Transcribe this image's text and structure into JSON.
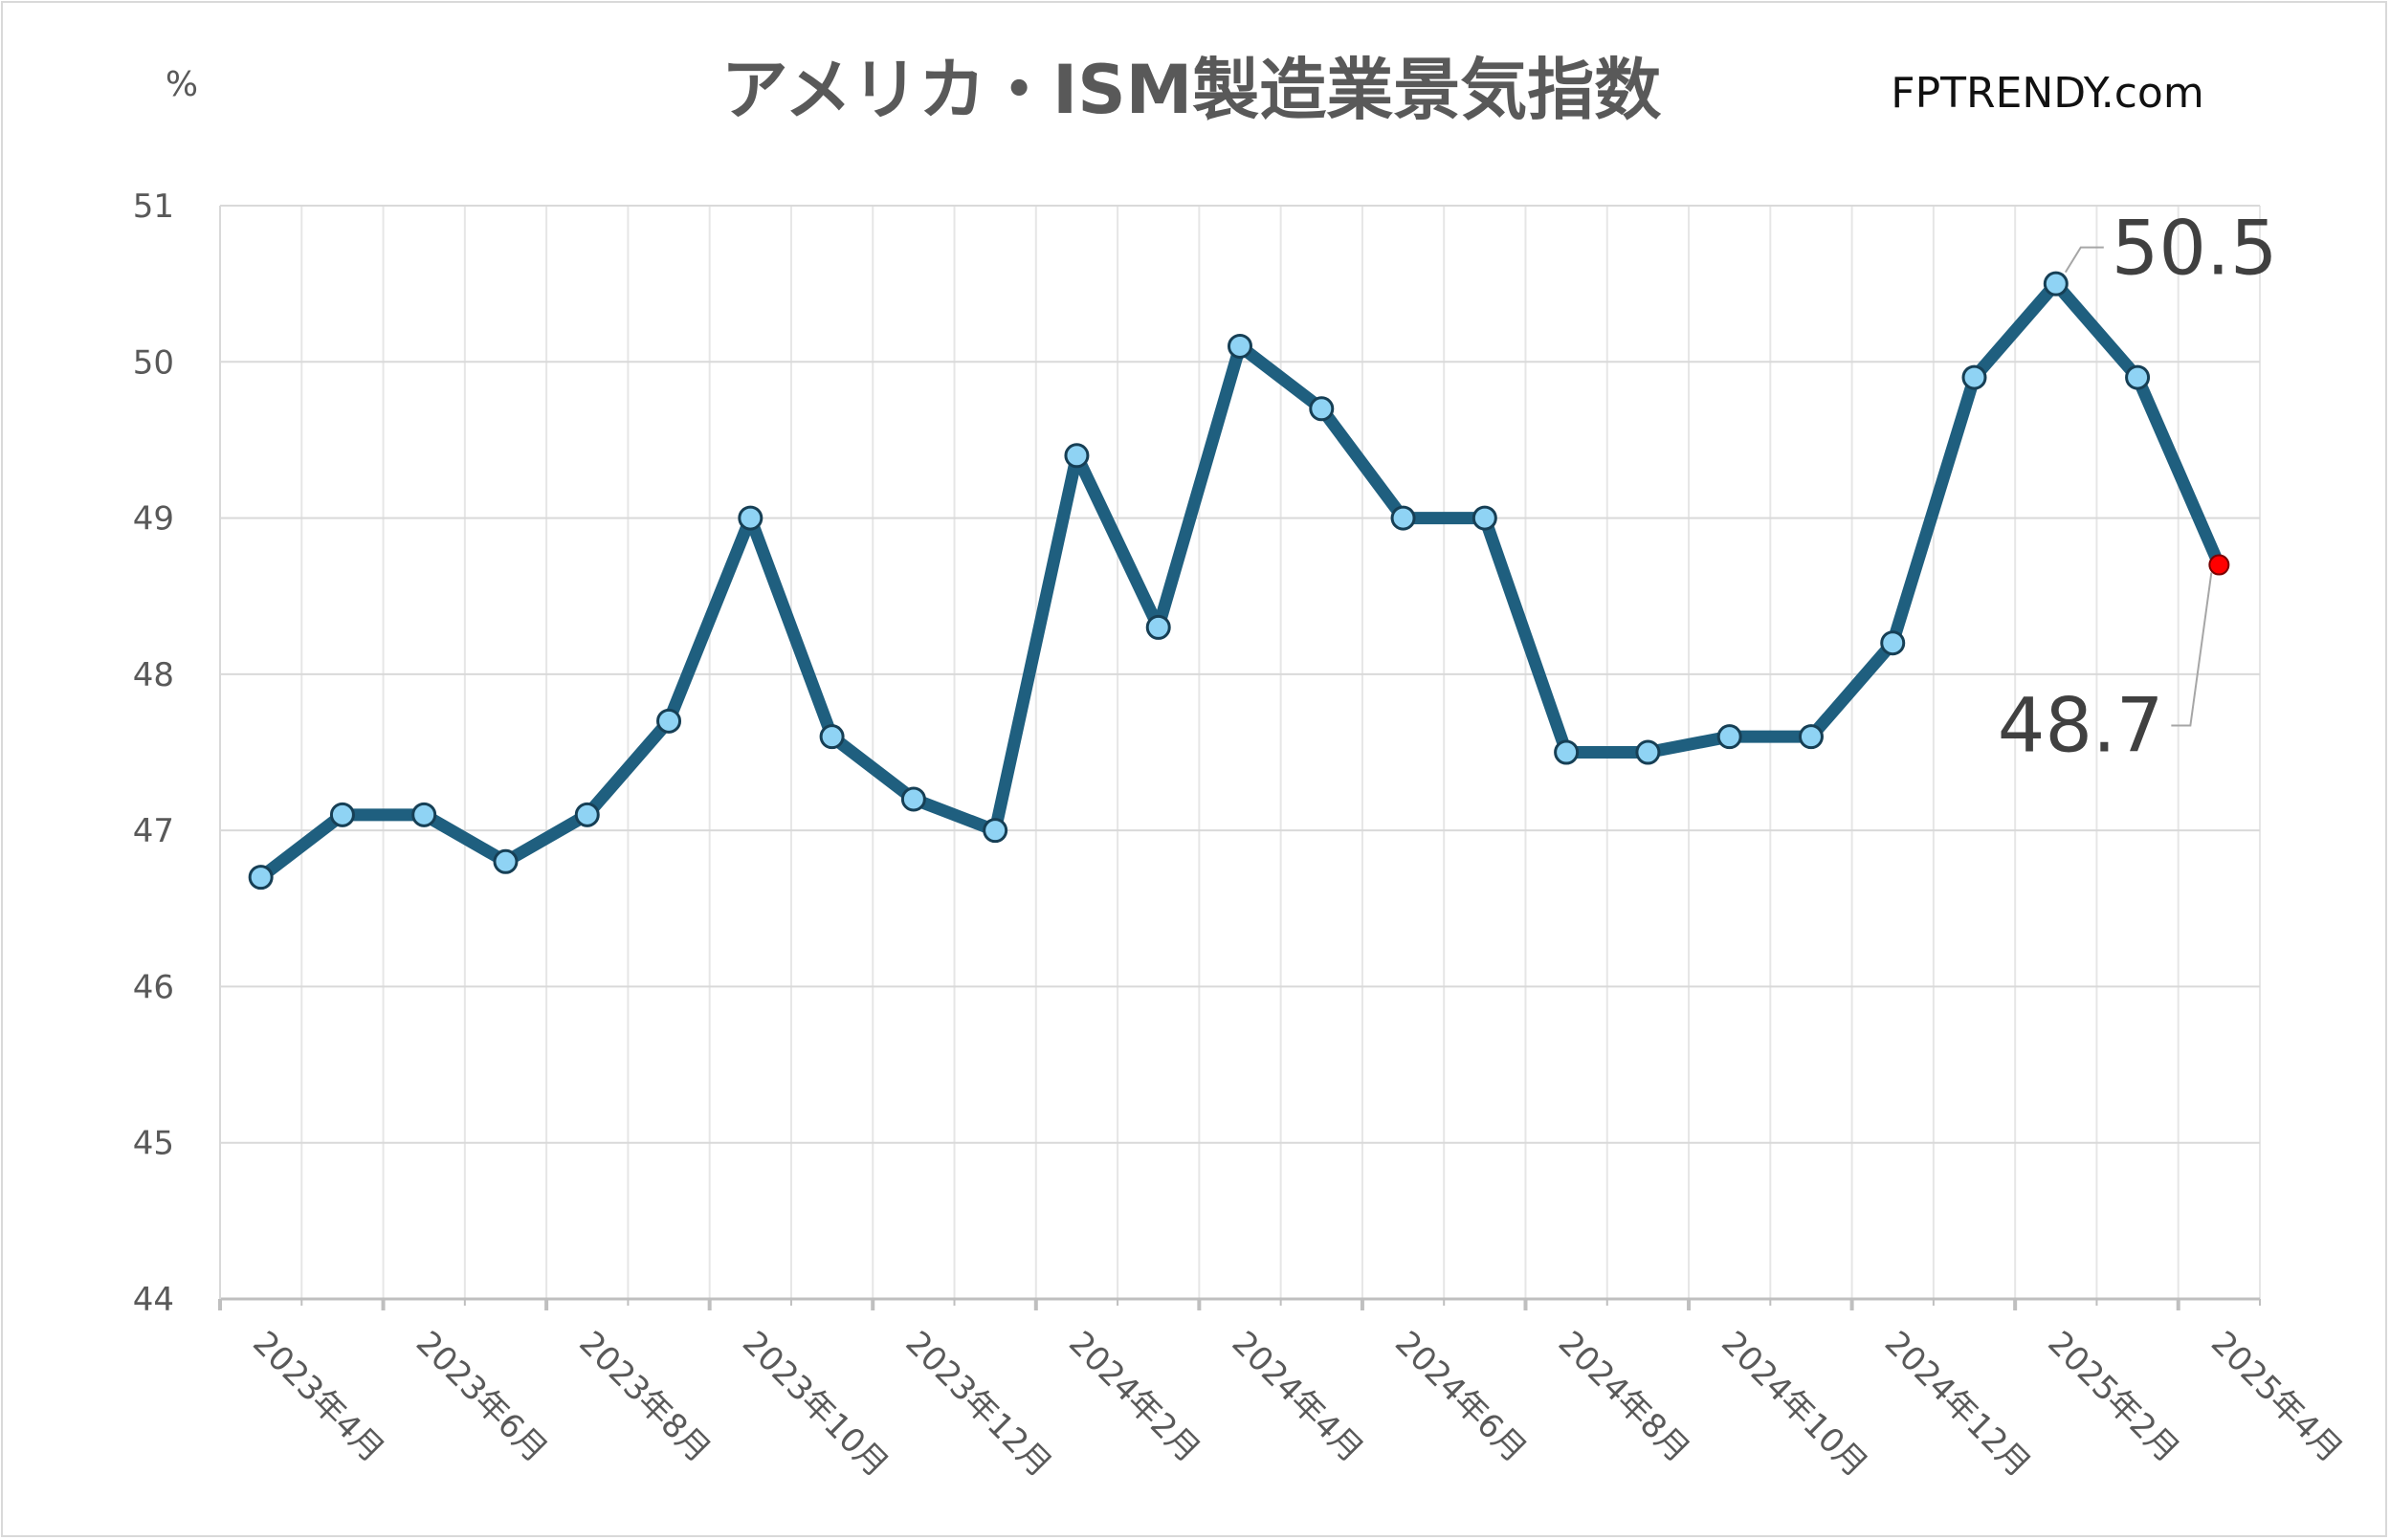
{
  "chart_data": {
    "type": "line",
    "title": "アメリカ・ISM製造業景気指数",
    "source": "FPTRENDY.com",
    "ylabel": "%",
    "ylim": [
      44,
      51
    ],
    "yticks": [
      44,
      45,
      46,
      47,
      48,
      49,
      50,
      51
    ],
    "grid": true,
    "x": [
      "2023年4月",
      "2023年5月",
      "2023年6月",
      "2023年7月",
      "2023年8月",
      "2023年9月",
      "2023年10月",
      "2023年11月",
      "2023年12月",
      "2024年1月",
      "2024年2月",
      "2024年3月",
      "2024年4月",
      "2024年5月",
      "2024年6月",
      "2024年7月",
      "2024年8月",
      "2024年9月",
      "2024年10月",
      "2024年11月",
      "2024年12月",
      "2025年1月",
      "2025年2月",
      "2025年3月",
      "2025年4月"
    ],
    "xtick_labels": [
      "2023年4月",
      "2023年6月",
      "2023年8月",
      "2023年10月",
      "2023年12月",
      "2024年2月",
      "2024年4月",
      "2024年6月",
      "2024年8月",
      "2024年10月",
      "2024年12月",
      "2025年2月",
      "2025年4月"
    ],
    "series": [
      {
        "values": [
          46.7,
          47.1,
          47.1,
          46.8,
          47.1,
          47.7,
          49.0,
          47.6,
          47.2,
          47.0,
          49.4,
          48.3,
          50.1,
          49.7,
          49.0,
          49.0,
          47.5,
          47.5,
          47.6,
          47.6,
          48.2,
          49.9,
          50.5,
          49.9,
          48.7
        ],
        "color": "#1f5f7f",
        "marker_color": "#8fd3f4",
        "last_marker_color": "#ff0000"
      }
    ],
    "annotations": [
      {
        "label": "50.5",
        "x": "2025年2月",
        "value": 50.5
      },
      {
        "label": "48.7",
        "x": "2025年4月",
        "value": 48.7
      }
    ]
  }
}
